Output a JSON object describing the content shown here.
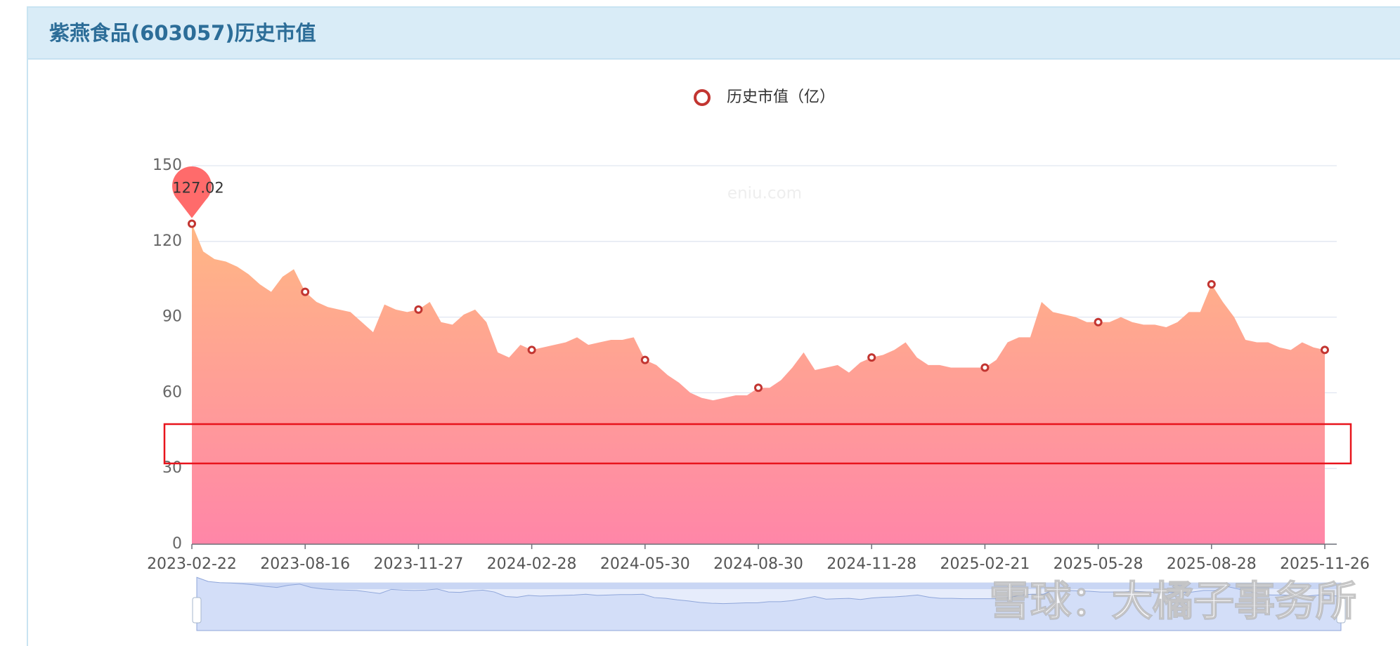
{
  "chart_data": {
    "type": "area",
    "title": "紫燕食品(603057)历史市值",
    "watermark": "eniu.com",
    "overlay_watermark": "雪球：大橘子事务所",
    "x": [
      "2023-02-22",
      null,
      null,
      null,
      null,
      null,
      null,
      null,
      null,
      null,
      "2023-08-16",
      null,
      null,
      null,
      null,
      null,
      null,
      null,
      null,
      null,
      "2023-11-27",
      null,
      null,
      null,
      null,
      null,
      null,
      null,
      null,
      null,
      "2024-02-28",
      null,
      null,
      null,
      null,
      null,
      null,
      null,
      null,
      null,
      "2024-05-30",
      null,
      null,
      null,
      null,
      null,
      null,
      null,
      null,
      null,
      "2024-08-30",
      null,
      null,
      null,
      null,
      null,
      null,
      null,
      null,
      null,
      "2024-11-28",
      null,
      null,
      null,
      null,
      null,
      null,
      null,
      null,
      null,
      "2025-02-21",
      null,
      null,
      null,
      null,
      null,
      null,
      null,
      null,
      null,
      "2025-05-28",
      null,
      null,
      null,
      null,
      null,
      null,
      null,
      null,
      null,
      "2025-08-28",
      null,
      null,
      null,
      null,
      null,
      null,
      null,
      null,
      null,
      "2025-11-26"
    ],
    "series": [
      {
        "name": "历史市值（亿）",
        "color": "#c23531",
        "values": [
          127.02,
          116,
          113,
          112,
          110,
          107,
          103,
          100,
          106,
          109,
          100,
          96,
          94,
          93,
          92,
          88,
          84,
          95,
          93,
          92,
          93,
          96,
          88,
          87,
          91,
          93,
          88,
          76,
          74,
          79,
          77,
          78,
          79,
          80,
          82,
          79,
          80,
          81,
          81,
          82,
          73,
          71,
          67,
          64,
          60,
          58,
          57,
          58,
          59,
          59,
          62,
          62,
          65,
          70,
          76,
          69,
          70,
          71,
          68,
          72,
          74,
          75,
          77,
          80,
          74,
          71,
          71,
          70,
          70,
          70,
          70,
          73,
          80,
          82,
          82,
          96,
          92,
          91,
          90,
          88,
          88,
          88,
          90,
          88,
          87,
          87,
          86,
          88,
          92,
          92,
          103,
          96,
          90,
          81,
          80,
          80,
          78,
          77,
          80,
          78,
          77
        ],
        "value_labels": [
          "127.02",
          null,
          null,
          null,
          null,
          null,
          null,
          null,
          null,
          null,
          null,
          null,
          null,
          null,
          null,
          null,
          null,
          null,
          null,
          null,
          null,
          null,
          null,
          null,
          null,
          null,
          null,
          null,
          null,
          null,
          null,
          null,
          null,
          null,
          null,
          null,
          null,
          null,
          null,
          null,
          null,
          null,
          null,
          null,
          null,
          null,
          null,
          null,
          null,
          null,
          null,
          null,
          null,
          null,
          null,
          null,
          null,
          null,
          null,
          null,
          null,
          null,
          null,
          null,
          null,
          null,
          null,
          null,
          null,
          null,
          null,
          null,
          null,
          null,
          null,
          null,
          null,
          null,
          null,
          null,
          null,
          null,
          null,
          null,
          null,
          null,
          null,
          null,
          null,
          null,
          null,
          null,
          null,
          null,
          null,
          null,
          null,
          null,
          null,
          null,
          null
        ]
      }
    ],
    "ylim": [
      0,
      150
    ],
    "yticks": [
      0,
      30,
      60,
      90,
      120,
      150
    ],
    "grid": true,
    "legend": "top"
  }
}
